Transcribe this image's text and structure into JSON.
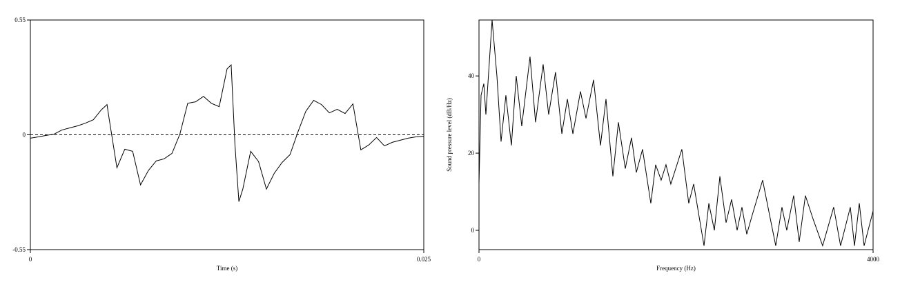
{
  "chart_data": [
    {
      "type": "line",
      "x_label": "Time (s)",
      "x": [
        0,
        0.0005,
        0.001,
        0.0015,
        0.002,
        0.0025,
        0.003,
        0.0035,
        0.004,
        0.0045,
        0.00487,
        0.005,
        0.0055,
        0.006,
        0.0065,
        0.007,
        0.0075,
        0.008,
        0.0085,
        0.009,
        0.0095,
        0.01,
        0.0105,
        0.011,
        0.0115,
        0.012,
        0.0125,
        0.01276,
        0.013,
        0.01325,
        0.0135,
        0.014,
        0.0145,
        0.015,
        0.0155,
        0.016,
        0.0165,
        0.017,
        0.0175,
        0.018,
        0.0185,
        0.019,
        0.0195,
        0.02,
        0.0205,
        0.021,
        0.0215,
        0.022,
        0.0225,
        0.023,
        0.0235,
        0.024,
        0.0245,
        0.025
      ],
      "series": [
        {
          "color": "#000000",
          "values": [
            -0.016,
            -0.01,
            -0.003,
            0.003,
            0.023,
            0.033,
            0.043,
            0.056,
            0.072,
            0.119,
            0.145,
            0.08,
            -0.158,
            -0.069,
            -0.079,
            -0.24,
            -0.171,
            -0.125,
            -0.115,
            -0.089,
            0.003,
            0.151,
            0.158,
            0.184,
            0.151,
            0.135,
            0.316,
            0.335,
            -0.046,
            -0.32,
            -0.26,
            -0.079,
            -0.128,
            -0.26,
            -0.184,
            -0.132,
            -0.095,
            0.013,
            0.112,
            0.165,
            0.145,
            0.105,
            0.122,
            0.102,
            0.148,
            -0.072,
            -0.049,
            -0.013,
            -0.053,
            -0.036,
            -0.026,
            -0.016,
            -0.01,
            -0.007
          ]
        }
      ],
      "xlim": [
        0,
        0.025
      ],
      "xticks": [
        0,
        0.025
      ],
      "ylim": [
        -0.55,
        0.55
      ],
      "yticks": [
        -0.55,
        0,
        0.55
      ],
      "zero_line": true
    },
    {
      "type": "line",
      "x_label": "Frequency (Hz)",
      "y_label": "Sound pressure level (dB/Hz)",
      "x": [
        0,
        21,
        49,
        70,
        133,
        182,
        224,
        273,
        329,
        378,
        434,
        518,
        574,
        651,
        707,
        777,
        841,
        897,
        953,
        1030,
        1086,
        1163,
        1233,
        1289,
        1359,
        1415,
        1485,
        1548,
        1597,
        1660,
        1744,
        1793,
        1849,
        1898,
        1947,
        2059,
        2129,
        2179,
        2284,
        2333,
        2389,
        2445,
        2508,
        2564,
        2620,
        2669,
        2718,
        2774,
        2879,
        2949,
        3012,
        3075,
        3124,
        3194,
        3250,
        3313,
        3390,
        3488,
        3600,
        3670,
        3769,
        3811,
        3860,
        3909,
        4000
      ],
      "series": [
        {
          "color": "#000000",
          "values": [
            12,
            35,
            38,
            30,
            54.5,
            40,
            23,
            35,
            22,
            40,
            27,
            45,
            28,
            43,
            30,
            41,
            25,
            34,
            25,
            36,
            29,
            39,
            22,
            34,
            14,
            28,
            16,
            24,
            15,
            21,
            7,
            17,
            13,
            17,
            12,
            21,
            7,
            12,
            -4,
            7,
            0,
            14,
            2,
            8,
            0,
            6,
            -1,
            4,
            13,
            4,
            -4,
            6,
            0,
            9,
            -3,
            9,
            3,
            -4,
            6,
            -4,
            6,
            -4,
            7,
            -4,
            5
          ]
        }
      ],
      "xlim": [
        0,
        4000
      ],
      "xticks": [
        0,
        4000
      ],
      "ylim": [
        -5,
        54.5
      ],
      "yticks": [
        0,
        20,
        40
      ],
      "zero_line": false
    }
  ]
}
